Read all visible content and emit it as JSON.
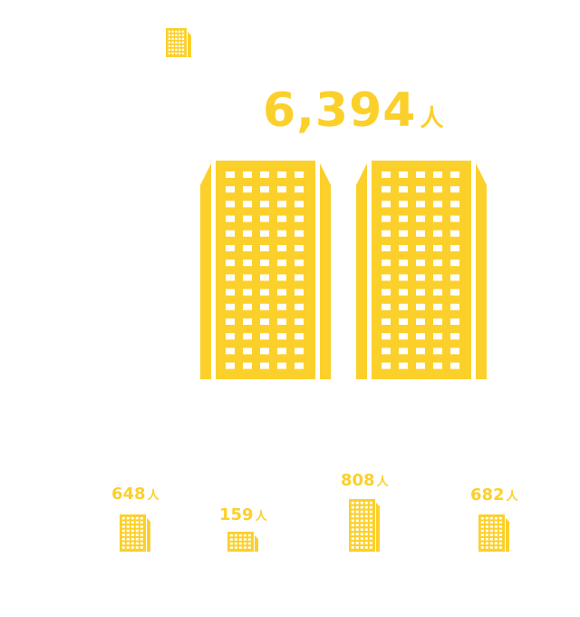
{
  "total": {
    "value": "6,394",
    "unit": "人"
  },
  "items": [
    {
      "value": "648",
      "unit": "人",
      "icon": "building-icon"
    },
    {
      "value": "159",
      "unit": "人",
      "icon": "building-icon"
    },
    {
      "value": "808",
      "unit": "人",
      "icon": "building-icon"
    },
    {
      "value": "682",
      "unit": "人",
      "icon": "building-icon"
    }
  ],
  "colors": {
    "accent": "#FCD02B",
    "background": "#FFFFFF"
  }
}
